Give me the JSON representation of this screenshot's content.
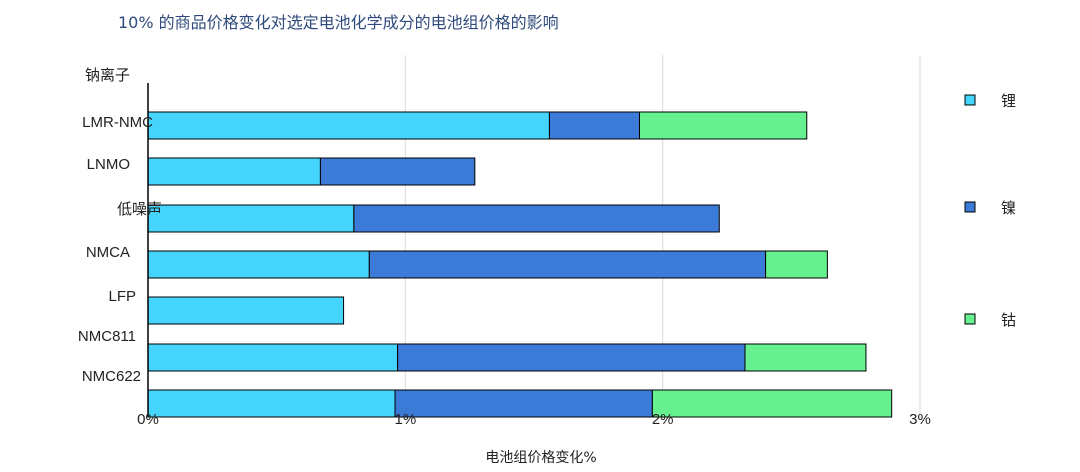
{
  "colors": {
    "li": "#45d4fc",
    "ni": "#3b7ad6",
    "co": "#66f08f",
    "grid": "#d9d9d9",
    "title": "#2f4b7c"
  },
  "chart_data": {
    "type": "bar",
    "orientation": "horizontal",
    "stacked": true,
    "title": "10% 的商品价格变化对选定电池化学成分的电池组价格的影响",
    "xlabel": "电池组价格变化%",
    "ylabel": "",
    "xlim": [
      0,
      3
    ],
    "xticks": [
      {
        "value": 0,
        "label": "0%"
      },
      {
        "value": 1,
        "label": "1%"
      },
      {
        "value": 2,
        "label": "2%"
      },
      {
        "value": 3,
        "label": "3%"
      }
    ],
    "grid": "vertical",
    "legend_position": "right",
    "categories": [
      "钠离子",
      "LMR-NMC",
      "LNMO",
      "低噪声",
      "NMCA",
      "LFP",
      "NMC811",
      "NMC622"
    ],
    "series": [
      {
        "name": "锂",
        "color_key": "li",
        "values": [
          0,
          1.56,
          0.67,
          0.8,
          0.86,
          0.76,
          0.97,
          0.96
        ]
      },
      {
        "name": "镍",
        "color_key": "ni",
        "values": [
          0,
          0.35,
          0.6,
          1.42,
          1.54,
          0,
          1.35,
          1.0
        ]
      },
      {
        "name": "钴",
        "color_key": "co",
        "values": [
          0,
          0.65,
          0,
          0,
          0.24,
          0,
          0.47,
          0.93
        ]
      }
    ]
  }
}
